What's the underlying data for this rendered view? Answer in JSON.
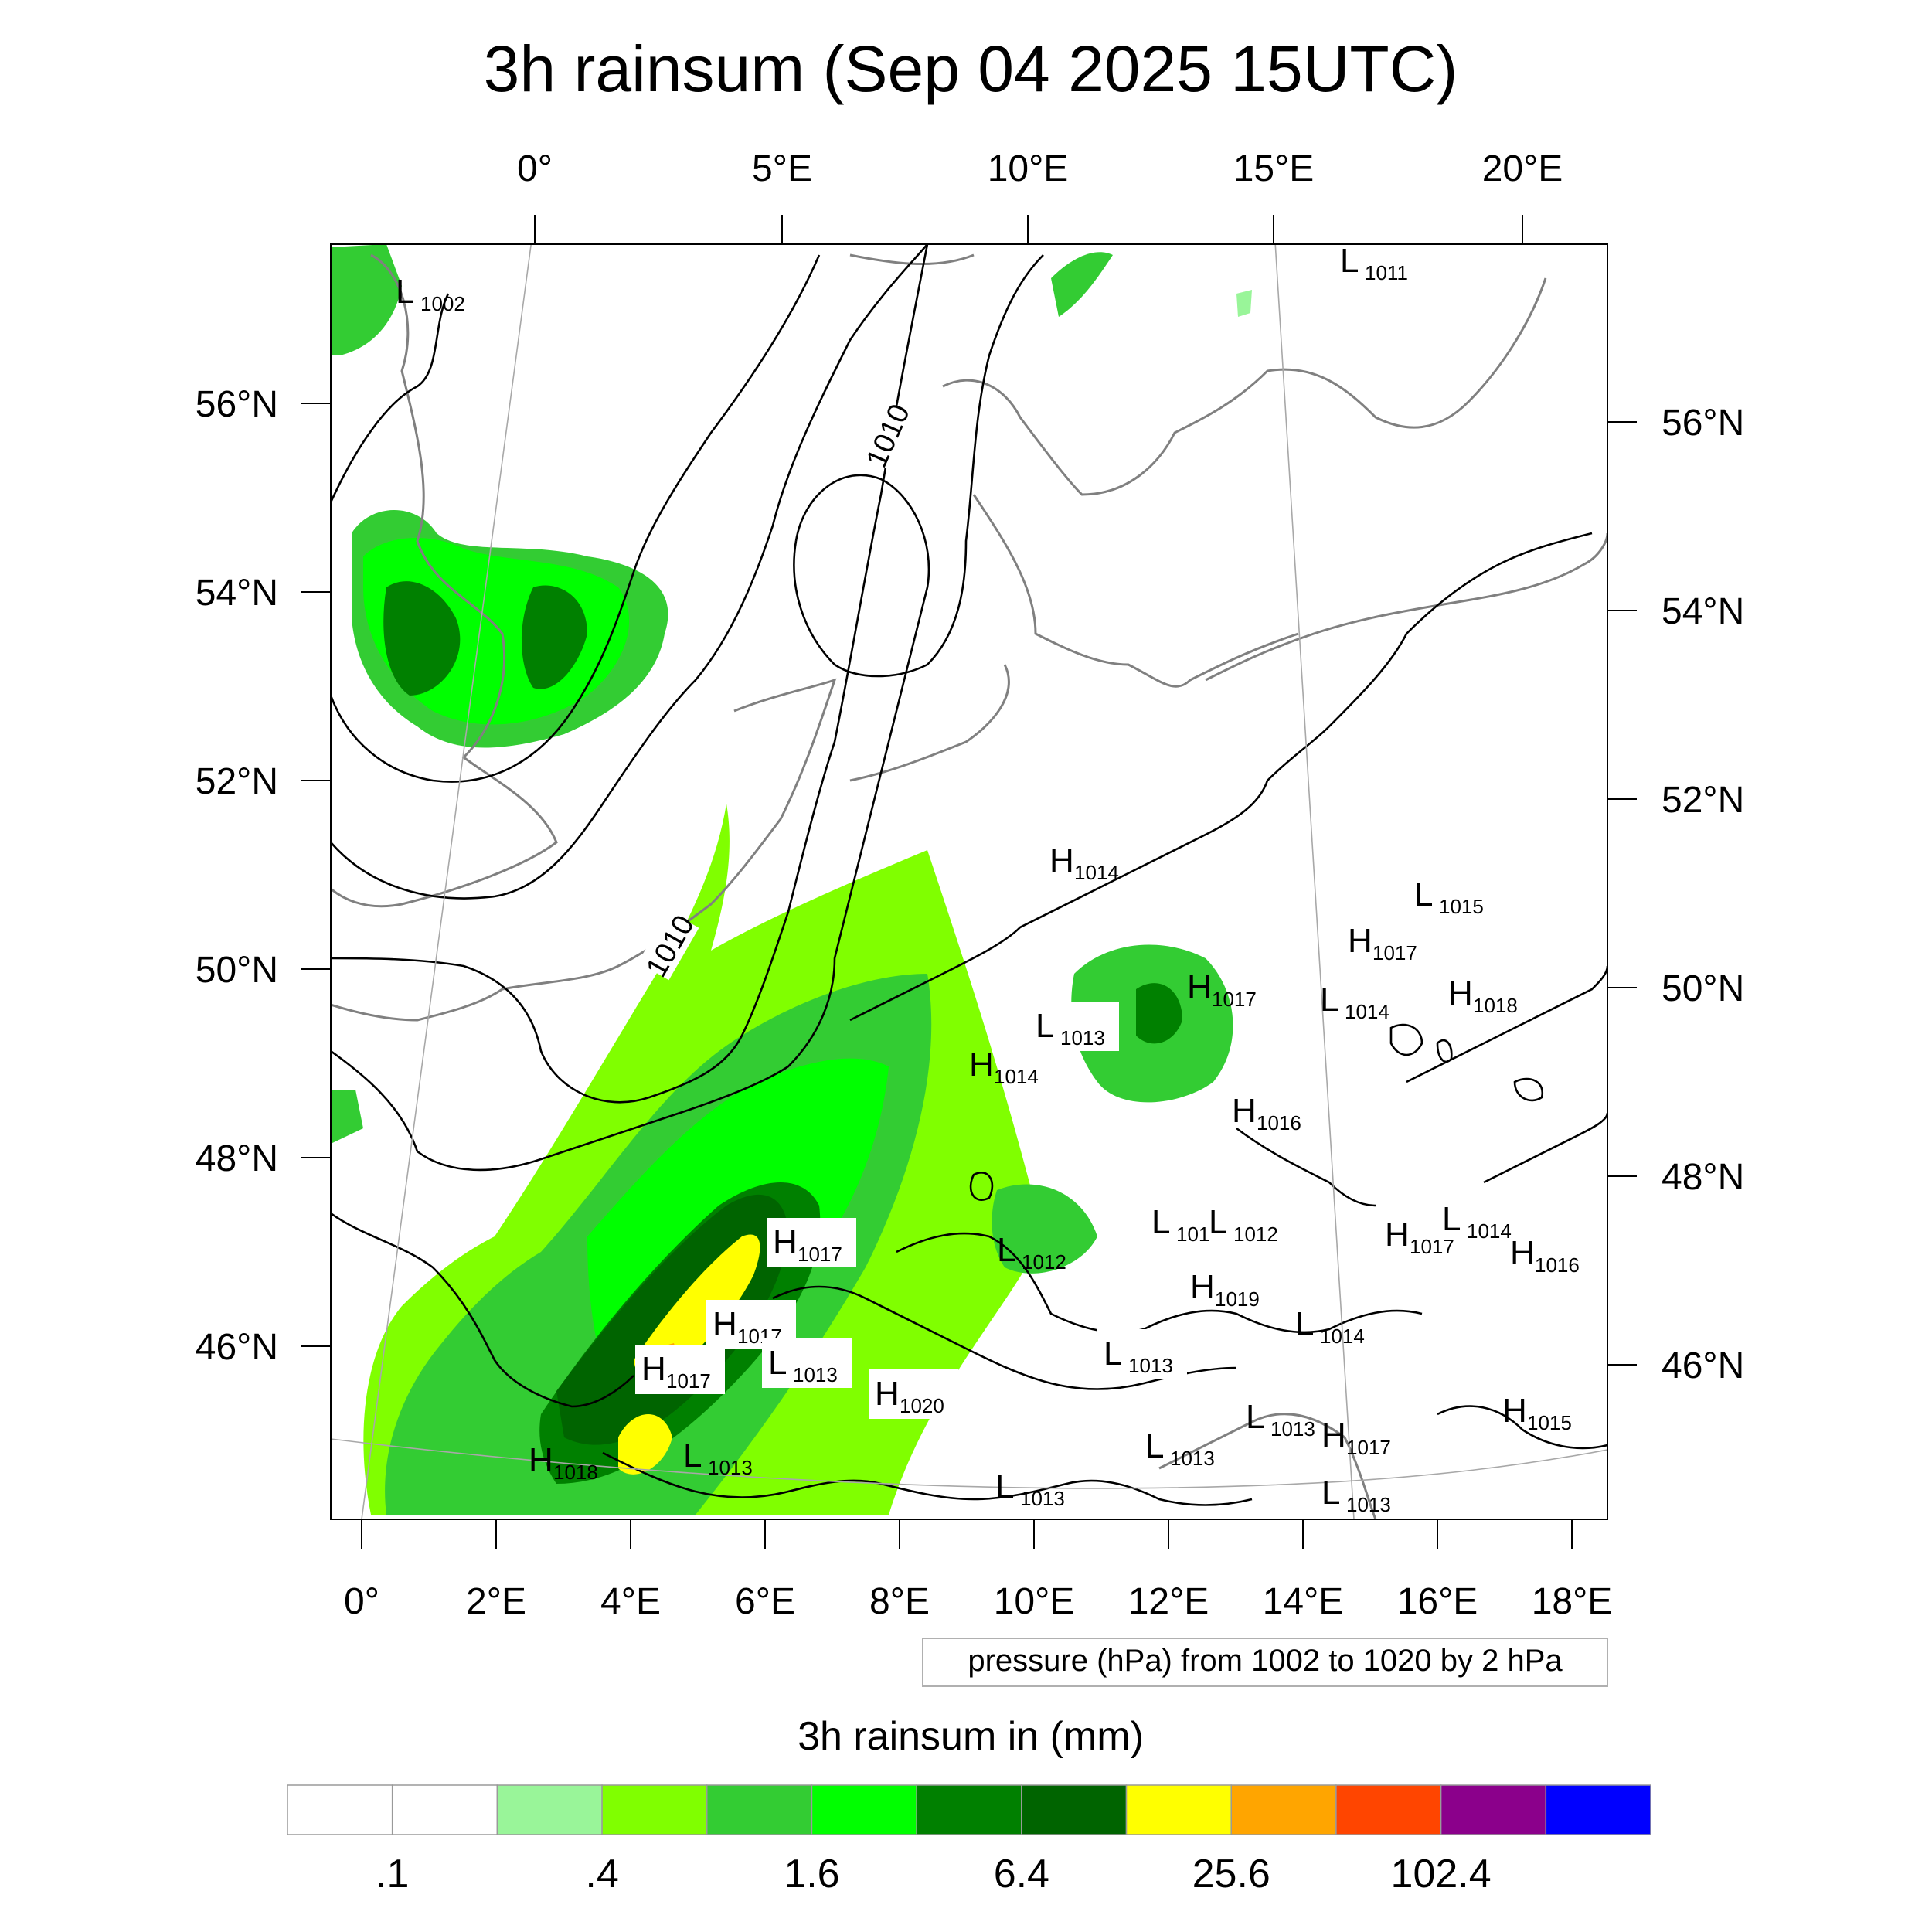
{
  "title": "3h rainsum (Sep 04 2025 15UTC)",
  "top_lon_labels": [
    "0°",
    "5°E",
    "10°E",
    "15°E",
    "20°E"
  ],
  "left_lat_labels": [
    "56°N",
    "54°N",
    "52°N",
    "50°N",
    "48°N",
    "46°N"
  ],
  "right_lat_labels": [
    "56°N",
    "54°N",
    "52°N",
    "50°N",
    "48°N",
    "46°N"
  ],
  "bottom_lon_labels": [
    "0°",
    "2°E",
    "4°E",
    "6°E",
    "8°E",
    "10°E",
    "12°E",
    "14°E",
    "16°E",
    "18°E"
  ],
  "contour_info": "pressure (hPa) from 1002 to 1020 by 2 hPa",
  "contour_labels": [
    "1010",
    "1010"
  ],
  "pressure_centers": [
    {
      "kind": "L",
      "value": "1002"
    },
    {
      "kind": "L",
      "value": "1011"
    },
    {
      "kind": "H",
      "value": "1014"
    },
    {
      "kind": "L",
      "value": "1015"
    },
    {
      "kind": "H",
      "value": "1017"
    },
    {
      "kind": "H",
      "value": "1017"
    },
    {
      "kind": "L",
      "value": "1014"
    },
    {
      "kind": "H",
      "value": "1018"
    },
    {
      "kind": "L",
      "value": "1013"
    },
    {
      "kind": "H",
      "value": "1014"
    },
    {
      "kind": "H",
      "value": "1016"
    },
    {
      "kind": "L",
      "value": "101"
    },
    {
      "kind": "L",
      "value": "1012"
    },
    {
      "kind": "H",
      "value": "1017"
    },
    {
      "kind": "L",
      "value": "1014"
    },
    {
      "kind": "H",
      "value": "1016"
    },
    {
      "kind": "H",
      "value": "1017"
    },
    {
      "kind": "L",
      "value": "1012"
    },
    {
      "kind": "H",
      "value": "1019"
    },
    {
      "kind": "H",
      "value": "1017"
    },
    {
      "kind": "L",
      "value": "1014"
    },
    {
      "kind": "H",
      "value": "1017"
    },
    {
      "kind": "L",
      "value": "1013"
    },
    {
      "kind": "H",
      "value": "1020"
    },
    {
      "kind": "L",
      "value": "1013"
    },
    {
      "kind": "H",
      "value": "1018"
    },
    {
      "kind": "L",
      "value": "1013"
    },
    {
      "kind": "L",
      "value": "1013"
    },
    {
      "kind": "L",
      "value": "1013"
    },
    {
      "kind": "H",
      "value": "1017"
    },
    {
      "kind": "L",
      "value": "1013"
    },
    {
      "kind": "H",
      "value": "1015"
    },
    {
      "kind": "L",
      "value": "1013"
    }
  ],
  "colorbar": {
    "title": "3h rainsum in (mm)",
    "colors": [
      "#ffffff",
      "#ffffff",
      "#99f599",
      "#80ff00",
      "#33cc33",
      "#00ff00",
      "#008000",
      "#006400",
      "#ffff00",
      "#ffa500",
      "#ff4500",
      "#8b008b",
      "#0000ff"
    ],
    "tick_labels": [
      ".1",
      ".4",
      "1.6",
      "6.4",
      "25.6",
      "102.4"
    ]
  }
}
